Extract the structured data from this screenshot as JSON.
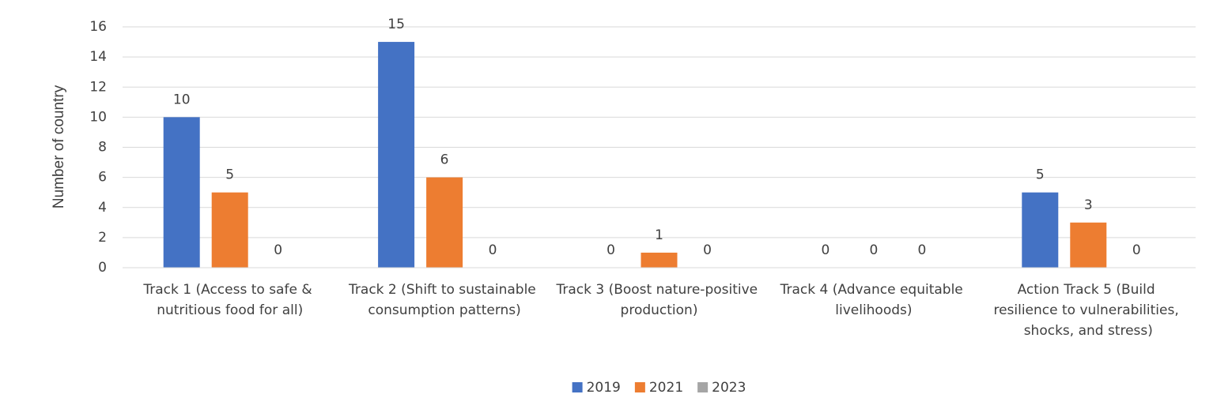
{
  "chart_data": {
    "type": "bar",
    "y_label": "Number of country",
    "categories": [
      "Track 1 (Access to safe & nutritious food for all)",
      "Track 2 (Shift to sustainable consumption patterns)",
      "Track 3 (Boost nature-positive production)",
      "Track 4 (Advance equitable livelihoods)",
      "Action Track 5 (Build resilience to vulnerabilities, shocks, and stress)"
    ],
    "series": [
      {
        "name": "2019",
        "color": "#4472c4",
        "values": [
          10,
          15,
          0,
          0,
          5
        ]
      },
      {
        "name": "2021",
        "color": "#ed7d31",
        "values": [
          5,
          6,
          1,
          0,
          3
        ]
      },
      {
        "name": "2023",
        "color": "#a5a5a5",
        "values": [
          0,
          0,
          0,
          0,
          0
        ]
      }
    ],
    "ylim": [
      0,
      16
    ],
    "yticks": [
      0,
      2,
      4,
      6,
      8,
      10,
      12,
      14,
      16
    ],
    "grid": true,
    "legend": "bottom"
  }
}
